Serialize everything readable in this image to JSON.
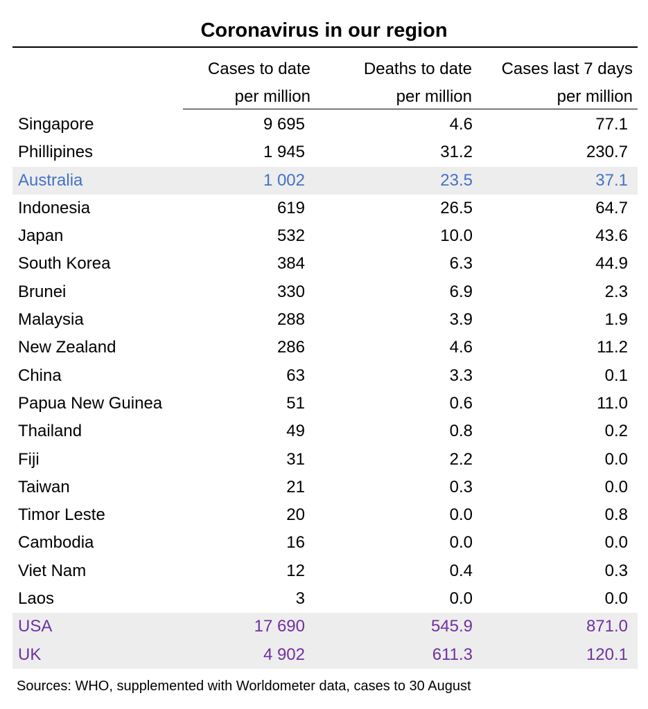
{
  "colors": {
    "highlight_background": "#EDEDED",
    "australia_text": "#4472C4",
    "comparison_text": "#7030A0",
    "default_text": "#000000"
  },
  "chart_data": {
    "type": "table",
    "title": "Coronavirus in our region",
    "columns": [
      {
        "line1": "",
        "line2": ""
      },
      {
        "line1": "Cases to date",
        "line2": "per million"
      },
      {
        "line1": "Deaths to date",
        "line2": "per million"
      },
      {
        "line1": "Cases last 7 days",
        "line2": "per million"
      }
    ],
    "rows": [
      {
        "country": "Singapore",
        "cases": "9 695",
        "deaths": "4.6",
        "week": "77.1",
        "style": "normal"
      },
      {
        "country": "Phillipines",
        "cases": "1 945",
        "deaths": "31.2",
        "week": "230.7",
        "style": "normal"
      },
      {
        "country": "Australia",
        "cases": "1 002",
        "deaths": "23.5",
        "week": "37.1",
        "style": "australia"
      },
      {
        "country": "Indonesia",
        "cases": "619",
        "deaths": "26.5",
        "week": "64.7",
        "style": "normal"
      },
      {
        "country": "Japan",
        "cases": "532",
        "deaths": "10.0",
        "week": "43.6",
        "style": "normal"
      },
      {
        "country": "South Korea",
        "cases": "384",
        "deaths": "6.3",
        "week": "44.9",
        "style": "normal"
      },
      {
        "country": "Brunei",
        "cases": "330",
        "deaths": "6.9",
        "week": "2.3",
        "style": "normal"
      },
      {
        "country": "Malaysia",
        "cases": "288",
        "deaths": "3.9",
        "week": "1.9",
        "style": "normal"
      },
      {
        "country": "New Zealand",
        "cases": "286",
        "deaths": "4.6",
        "week": "11.2",
        "style": "normal"
      },
      {
        "country": "China",
        "cases": "63",
        "deaths": "3.3",
        "week": "0.1",
        "style": "normal"
      },
      {
        "country": "Papua New Guinea",
        "cases": "51",
        "deaths": "0.6",
        "week": "11.0",
        "style": "normal"
      },
      {
        "country": "Thailand",
        "cases": "49",
        "deaths": "0.8",
        "week": "0.2",
        "style": "normal"
      },
      {
        "country": "Fiji",
        "cases": "31",
        "deaths": "2.2",
        "week": "0.0",
        "style": "normal"
      },
      {
        "country": "Taiwan",
        "cases": "21",
        "deaths": "0.3",
        "week": "0.0",
        "style": "normal"
      },
      {
        "country": "Timor Leste",
        "cases": "20",
        "deaths": "0.0",
        "week": "0.8",
        "style": "normal"
      },
      {
        "country": "Cambodia",
        "cases": "16",
        "deaths": "0.0",
        "week": "0.0",
        "style": "normal"
      },
      {
        "country": "Viet Nam",
        "cases": "12",
        "deaths": "0.4",
        "week": "0.3",
        "style": "normal"
      },
      {
        "country": "Laos",
        "cases": "3",
        "deaths": "0.0",
        "week": "0.0",
        "style": "normal"
      },
      {
        "country": "USA",
        "cases": "17 690",
        "deaths": "545.9",
        "week": "871.0",
        "style": "comparison"
      },
      {
        "country": "UK",
        "cases": "4 902",
        "deaths": "611.3",
        "week": "120.1",
        "style": "comparison"
      }
    ],
    "source": "Sources: WHO, supplemented with Worldometer data, cases to 30 August"
  }
}
